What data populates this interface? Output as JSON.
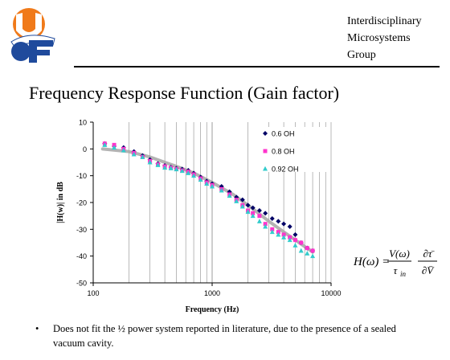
{
  "header": {
    "group_name": "Interdisciplinary\nMicrosystems\nGroup"
  },
  "slide_title": "Frequency Response Function (Gain factor)",
  "formula": {
    "lhs": "H(ω) =",
    "num1": "V(ω)",
    "den1": "τ",
    "den1_sub": "in",
    "num2": "∂τ̄",
    "den2": "∂V̄"
  },
  "bullet": {
    "marker": "•",
    "text": "Does not fit the ½ power system reported in literature, due to the presence of a sealed vacuum cavity."
  },
  "colors": {
    "series1": "#000066",
    "series2": "#ff33cc",
    "series3": "#33cccc",
    "fit": "#a6a6a6",
    "logo_orange": "#f07a1a",
    "logo_blue": "#1f4a9c"
  },
  "chart_data": {
    "type": "scatter",
    "title": "",
    "xlabel": "Frequency (Hz)",
    "ylabel": "|H(w)| in dB",
    "xscale": "log",
    "xlim": [
      100,
      10000
    ],
    "ylim": [
      -50,
      10
    ],
    "xticks": [
      "100",
      "1000",
      "10000"
    ],
    "yticks": [
      "10",
      "0",
      "-10",
      "-20",
      "-30",
      "-40",
      "-50"
    ],
    "grid": "vertical minor log gridlines",
    "legend_position": "top-right",
    "series": [
      {
        "name": "0.6 OH",
        "marker": "diamond",
        "color": "#000066",
        "points": [
          [
            125,
            2
          ],
          [
            150,
            1
          ],
          [
            180,
            0.5
          ],
          [
            220,
            -1
          ],
          [
            260,
            -2.5
          ],
          [
            300,
            -4
          ],
          [
            350,
            -5.5
          ],
          [
            400,
            -6.2
          ],
          [
            450,
            -6.8
          ],
          [
            500,
            -7.2
          ],
          [
            560,
            -7.5
          ],
          [
            630,
            -8
          ],
          [
            700,
            -9
          ],
          [
            800,
            -10.5
          ],
          [
            900,
            -12
          ],
          [
            1000,
            -13
          ],
          [
            1200,
            -14
          ],
          [
            1400,
            -16
          ],
          [
            1600,
            -18
          ],
          [
            1800,
            -19
          ],
          [
            2000,
            -21
          ],
          [
            2200,
            -22
          ],
          [
            2500,
            -23
          ],
          [
            2800,
            -24
          ],
          [
            3200,
            -26
          ],
          [
            3600,
            -27
          ],
          [
            4000,
            -28
          ],
          [
            4500,
            -29
          ],
          [
            5000,
            -32
          ],
          [
            5600,
            -35
          ],
          [
            6300,
            -37
          ],
          [
            7000,
            -38
          ]
        ]
      },
      {
        "name": "0.8 OH",
        "marker": "square",
        "color": "#ff33cc",
        "points": [
          [
            125,
            2
          ],
          [
            150,
            1.5
          ],
          [
            180,
            0
          ],
          [
            220,
            -1.5
          ],
          [
            260,
            -3
          ],
          [
            300,
            -4.5
          ],
          [
            350,
            -5.8
          ],
          [
            400,
            -6.5
          ],
          [
            450,
            -7
          ],
          [
            500,
            -7.5
          ],
          [
            560,
            -8
          ],
          [
            630,
            -8.5
          ],
          [
            700,
            -9.5
          ],
          [
            800,
            -11
          ],
          [
            900,
            -12.5
          ],
          [
            1000,
            -13.5
          ],
          [
            1200,
            -15
          ],
          [
            1400,
            -17
          ],
          [
            1600,
            -19
          ],
          [
            1800,
            -21
          ],
          [
            2000,
            -23
          ],
          [
            2200,
            -24
          ],
          [
            2500,
            -25
          ],
          [
            2800,
            -28
          ],
          [
            3200,
            -30
          ],
          [
            3600,
            -31
          ],
          [
            4000,
            -32
          ],
          [
            4500,
            -33
          ],
          [
            5000,
            -34
          ],
          [
            5600,
            -35
          ],
          [
            6300,
            -37
          ],
          [
            7000,
            -38
          ]
        ]
      },
      {
        "name": "0.92 OH",
        "marker": "triangle",
        "color": "#33cccc",
        "points": [
          [
            125,
            1.5
          ],
          [
            150,
            0.5
          ],
          [
            180,
            -0.5
          ],
          [
            220,
            -2
          ],
          [
            260,
            -3
          ],
          [
            300,
            -5
          ],
          [
            350,
            -6
          ],
          [
            400,
            -7
          ],
          [
            450,
            -7.2
          ],
          [
            500,
            -7.6
          ],
          [
            560,
            -8.2
          ],
          [
            630,
            -9
          ],
          [
            700,
            -10
          ],
          [
            800,
            -11.5
          ],
          [
            900,
            -13
          ],
          [
            1000,
            -14
          ],
          [
            1200,
            -15.5
          ],
          [
            1400,
            -17.5
          ],
          [
            1600,
            -19.5
          ],
          [
            1800,
            -21.5
          ],
          [
            2000,
            -23.5
          ],
          [
            2200,
            -25
          ],
          [
            2500,
            -27
          ],
          [
            2800,
            -29
          ],
          [
            3200,
            -31
          ],
          [
            3600,
            -32
          ],
          [
            4000,
            -33
          ],
          [
            4500,
            -34
          ],
          [
            5000,
            -36
          ],
          [
            5600,
            -38
          ],
          [
            6300,
            -39
          ],
          [
            7000,
            -40
          ]
        ]
      },
      {
        "name": "",
        "marker": "line",
        "color": "#a6a6a6",
        "points": [
          [
            120,
            0
          ],
          [
            200,
            -1
          ],
          [
            300,
            -3
          ],
          [
            400,
            -5
          ],
          [
            500,
            -6.5
          ],
          [
            700,
            -9
          ],
          [
            1000,
            -12.5
          ],
          [
            1500,
            -17
          ],
          [
            2000,
            -21
          ],
          [
            3000,
            -27
          ],
          [
            4000,
            -31
          ],
          [
            5000,
            -34
          ],
          [
            7000,
            -38.5
          ]
        ]
      }
    ]
  }
}
